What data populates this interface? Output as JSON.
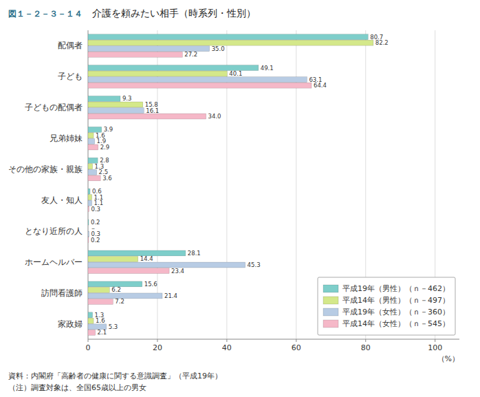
{
  "chart_data": {
    "type": "bar",
    "orientation": "horizontal",
    "title": "介護を頼みたい相手（時系列・性別）",
    "annotations": [
      "図１－２－３－１４",
      "資料：内閣府「高齢者の健康に関する意識調査」（平成19年）",
      "（注）調査対象は、全国65歳以上の男女"
    ],
    "xlabel": "（%）",
    "categories": [
      "配偶者",
      "子ども",
      "子どもの配偶者",
      "兄弟姉妹",
      "その他の家族・親族",
      "友人・知人",
      "となり近所の人",
      "ホームヘルバー",
      "訪問看護師",
      "家政婦"
    ],
    "series": [
      {
        "name": "平成19年（男性）（ｎ－462）",
        "color": "#7ececa",
        "values": [
          80.7,
          49.1,
          9.3,
          3.9,
          2.8,
          0.6,
          0.2,
          28.1,
          15.6,
          1.3
        ],
        "value_labels": [
          "80.7",
          "49.1",
          "9.3",
          "3.9",
          "2.8",
          "0.6",
          "0.2",
          "28.1",
          "15.6",
          "1.3"
        ]
      },
      {
        "name": "平成14年（男性）（ｎ－497）",
        "color": "#d4e88a",
        "values": [
          82.2,
          40.1,
          15.8,
          1.6,
          1.3,
          1.1,
          0.0,
          14.4,
          6.2,
          1.6
        ],
        "value_labels": [
          "82.2",
          "40.1",
          "15.8",
          "1.6",
          "1.3",
          "1.1",
          "－",
          "14.4",
          "6.2",
          "1.6"
        ]
      },
      {
        "name": "平成19年（女性）（ｎ－360）",
        "color": "#b8cce4",
        "values": [
          35.0,
          63.1,
          16.1,
          1.9,
          2.5,
          1.1,
          0.3,
          45.3,
          21.4,
          5.3
        ],
        "value_labels": [
          "35.0",
          "63.1",
          "16.1",
          "1.9",
          "2.5",
          "1.1",
          "0.3",
          "45.3",
          "21.4",
          "5.3"
        ]
      },
      {
        "name": "平成14年（女性）（ｎ－545）",
        "color": "#f5b8c8",
        "values": [
          27.2,
          64.4,
          34.0,
          2.9,
          3.6,
          0.3,
          0.2,
          23.4,
          7.2,
          2.1
        ],
        "value_labels": [
          "27.2",
          "64.4",
          "34.0",
          "2.9",
          "3.6",
          "0.3",
          "0.2",
          "23.4",
          "7.2",
          "2.1"
        ]
      }
    ],
    "xlim": [
      0,
      107
    ],
    "xticks": [
      0,
      20,
      40,
      60,
      80,
      100
    ],
    "grid": true,
    "legend": "lower right",
    "data_labels": true
  }
}
